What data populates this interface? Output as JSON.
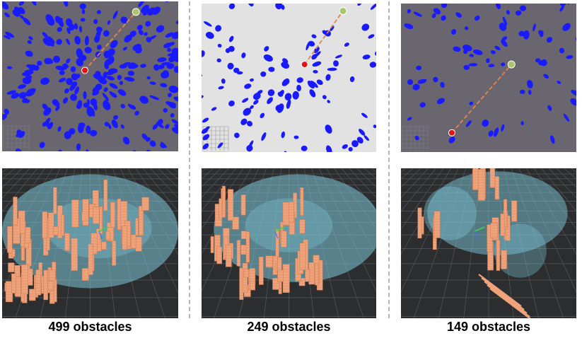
{
  "captions": {
    "c1": "499 obstacles",
    "c2": "249 obstacles",
    "c3": "149 obstacles"
  },
  "colors": {
    "obstacle": "#1a1aff",
    "background_dark": "#6a6670",
    "background_light": "#e2e2e2",
    "start": "#e01515",
    "goal": "#a8c66a",
    "path": "#e8844a",
    "voxel": "#f0a37a",
    "field": "#7ec6d8",
    "render_bg": "#2b2d2f"
  },
  "panels": [
    {
      "name": "top-view-499",
      "obstacle_count": 499,
      "background": "dark"
    },
    {
      "name": "top-view-249",
      "obstacle_count": 249,
      "background": "light"
    },
    {
      "name": "top-view-149",
      "obstacle_count": 149,
      "background": "dark"
    },
    {
      "name": "3d-view-499"
    },
    {
      "name": "3d-view-249"
    },
    {
      "name": "3d-view-149"
    }
  ]
}
